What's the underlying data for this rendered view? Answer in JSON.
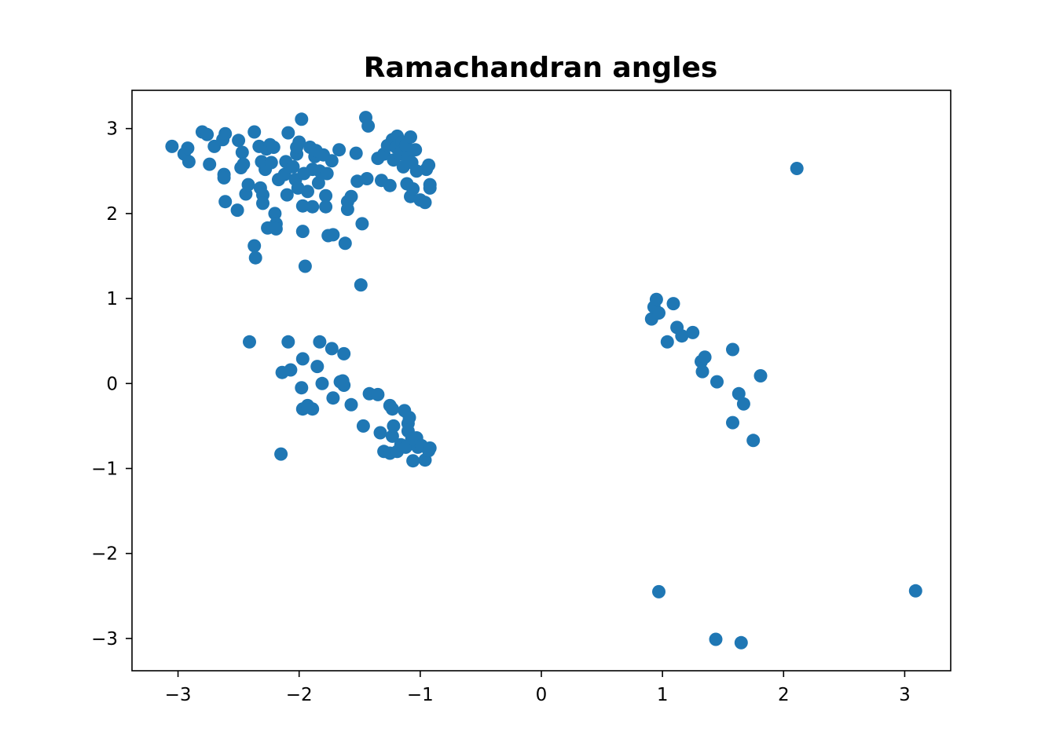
{
  "chart_data": {
    "type": "scatter",
    "title": "Ramachandran angles",
    "xlabel": "",
    "ylabel": "",
    "xlim": [
      -3.38,
      3.38
    ],
    "ylim": [
      -3.38,
      3.45
    ],
    "xticks": [
      -3,
      -2,
      -1,
      0,
      1,
      2,
      3
    ],
    "yticks": [
      -3,
      -2,
      -1,
      0,
      1,
      2,
      3
    ],
    "xtick_labels": [
      "−3",
      "−2",
      "−1",
      "0",
      "1",
      "2",
      "3"
    ],
    "ytick_labels": [
      "−3",
      "−2",
      "−1",
      "0",
      "1",
      "2",
      "3"
    ],
    "grid": false,
    "marker_color": "#1f77b4",
    "series": [
      {
        "points": [
          [
            -3.05,
            2.79
          ],
          [
            -2.95,
            2.7
          ],
          [
            -2.92,
            2.77
          ],
          [
            -2.91,
            2.61
          ],
          [
            -2.8,
            2.96
          ],
          [
            -2.76,
            2.93
          ],
          [
            -2.74,
            2.58
          ],
          [
            -2.7,
            2.79
          ],
          [
            -2.63,
            2.87
          ],
          [
            -2.61,
            2.94
          ],
          [
            -2.62,
            2.46
          ],
          [
            -2.62,
            2.42
          ],
          [
            -2.61,
            2.14
          ],
          [
            -2.51,
            2.04
          ],
          [
            -2.5,
            2.86
          ],
          [
            -2.48,
            2.54
          ],
          [
            -2.47,
            2.72
          ],
          [
            -2.46,
            2.58
          ],
          [
            -2.44,
            2.23
          ],
          [
            -2.42,
            2.34
          ],
          [
            -2.37,
            2.96
          ],
          [
            -2.37,
            1.62
          ],
          [
            -2.36,
            1.48
          ],
          [
            -2.33,
            2.79
          ],
          [
            -2.31,
            2.61
          ],
          [
            -2.32,
            2.3
          ],
          [
            -2.3,
            2.22
          ],
          [
            -2.3,
            2.12
          ],
          [
            -2.28,
            2.52
          ],
          [
            -2.27,
            2.76
          ],
          [
            -2.26,
            1.83
          ],
          [
            -2.24,
            2.81
          ],
          [
            -2.23,
            2.6
          ],
          [
            -2.21,
            2.78
          ],
          [
            -2.2,
            2.0
          ],
          [
            -2.19,
            1.88
          ],
          [
            -2.19,
            1.82
          ],
          [
            -2.17,
            2.4
          ],
          [
            -2.12,
            2.46
          ],
          [
            -2.11,
            2.61
          ],
          [
            -2.09,
            2.95
          ],
          [
            -2.1,
            2.22
          ],
          [
            -2.05,
            2.55
          ],
          [
            -2.03,
            2.4
          ],
          [
            -2.02,
            2.7
          ],
          [
            -2.01,
            2.3
          ],
          [
            -2.02,
            2.78
          ],
          [
            -2.0,
            2.84
          ],
          [
            -1.98,
            3.11
          ],
          [
            -1.97,
            1.79
          ],
          [
            -1.96,
            2.47
          ],
          [
            -1.97,
            2.09
          ],
          [
            -1.95,
            1.38
          ],
          [
            -1.93,
            2.26
          ],
          [
            -1.91,
            2.78
          ],
          [
            -1.89,
            2.52
          ],
          [
            -1.89,
            2.08
          ],
          [
            -1.87,
            2.67
          ],
          [
            -1.86,
            2.74
          ],
          [
            -1.84,
            2.36
          ],
          [
            -1.83,
            2.5
          ],
          [
            -1.8,
            2.69
          ],
          [
            -1.77,
            2.47
          ],
          [
            -1.78,
            2.21
          ],
          [
            -1.78,
            2.08
          ],
          [
            -1.76,
            1.74
          ],
          [
            -1.73,
            2.62
          ],
          [
            -1.72,
            1.75
          ],
          [
            -1.67,
            2.75
          ],
          [
            -1.62,
            1.65
          ],
          [
            -1.6,
            2.14
          ],
          [
            -1.6,
            2.05
          ],
          [
            -1.57,
            2.2
          ],
          [
            -1.53,
            2.71
          ],
          [
            -1.52,
            2.38
          ],
          [
            -1.49,
            1.16
          ],
          [
            -1.48,
            1.88
          ],
          [
            -1.45,
            3.13
          ],
          [
            -1.44,
            2.41
          ],
          [
            -1.43,
            3.03
          ],
          [
            -1.35,
            2.65
          ],
          [
            -1.32,
            2.39
          ],
          [
            -1.3,
            2.7
          ],
          [
            -1.27,
            2.8
          ],
          [
            -1.25,
            2.33
          ],
          [
            -1.23,
            2.87
          ],
          [
            -1.22,
            2.63
          ],
          [
            -1.2,
            2.78
          ],
          [
            -1.19,
            2.91
          ],
          [
            -1.17,
            2.7
          ],
          [
            -1.15,
            2.84
          ],
          [
            -1.14,
            2.55
          ],
          [
            -1.12,
            2.8
          ],
          [
            -1.11,
            2.35
          ],
          [
            -1.1,
            2.66
          ],
          [
            -1.08,
            2.2
          ],
          [
            -1.08,
            2.9
          ],
          [
            -1.07,
            2.6
          ],
          [
            -1.06,
            2.29
          ],
          [
            -1.04,
            2.75
          ],
          [
            -1.03,
            2.5
          ],
          [
            -1.0,
            2.16
          ],
          [
            -0.96,
            2.13
          ],
          [
            -0.95,
            2.52
          ],
          [
            -0.93,
            2.57
          ],
          [
            -0.92,
            2.34
          ],
          [
            -0.92,
            2.3
          ],
          [
            -2.41,
            0.49
          ],
          [
            -2.09,
            0.49
          ],
          [
            -1.83,
            0.49
          ],
          [
            -1.73,
            0.41
          ],
          [
            -1.63,
            0.35
          ],
          [
            -2.14,
            0.13
          ],
          [
            -2.07,
            0.16
          ],
          [
            -1.97,
            0.29
          ],
          [
            -1.85,
            0.2
          ],
          [
            -1.98,
            -0.05
          ],
          [
            -1.81,
            0.0
          ],
          [
            -1.66,
            0.02
          ],
          [
            -1.64,
            0.03
          ],
          [
            -1.63,
            -0.02
          ],
          [
            -1.97,
            -0.3
          ],
          [
            -1.93,
            -0.26
          ],
          [
            -1.89,
            -0.3
          ],
          [
            -1.72,
            -0.17
          ],
          [
            -1.57,
            -0.25
          ],
          [
            -1.47,
            -0.5
          ],
          [
            -1.42,
            -0.12
          ],
          [
            -1.35,
            -0.13
          ],
          [
            -1.33,
            -0.58
          ],
          [
            -1.3,
            -0.8
          ],
          [
            -1.25,
            -0.82
          ],
          [
            -1.25,
            -0.26
          ],
          [
            -1.23,
            -0.3
          ],
          [
            -1.23,
            -0.62
          ],
          [
            -1.22,
            -0.5
          ],
          [
            -1.19,
            -0.8
          ],
          [
            -1.16,
            -0.72
          ],
          [
            -1.13,
            -0.32
          ],
          [
            -1.12,
            -0.75
          ],
          [
            -1.1,
            -0.56
          ],
          [
            -1.1,
            -0.47
          ],
          [
            -1.09,
            -0.4
          ],
          [
            -1.07,
            -0.65
          ],
          [
            -1.06,
            -0.91
          ],
          [
            -1.03,
            -0.64
          ],
          [
            -1.02,
            -0.75
          ],
          [
            -0.99,
            -0.73
          ],
          [
            -0.96,
            -0.9
          ],
          [
            -0.93,
            -0.79
          ],
          [
            -0.92,
            -0.76
          ],
          [
            -2.15,
            -0.83
          ],
          [
            0.91,
            0.76
          ],
          [
            0.93,
            0.9
          ],
          [
            0.95,
            0.99
          ],
          [
            0.97,
            0.83
          ],
          [
            1.04,
            0.49
          ],
          [
            1.09,
            0.94
          ],
          [
            1.12,
            0.66
          ],
          [
            1.16,
            0.56
          ],
          [
            1.25,
            0.6
          ],
          [
            1.32,
            0.26
          ],
          [
            1.33,
            0.14
          ],
          [
            1.35,
            0.31
          ],
          [
            1.45,
            0.02
          ],
          [
            1.58,
            0.4
          ],
          [
            1.58,
            -0.46
          ],
          [
            1.63,
            -0.12
          ],
          [
            1.67,
            -0.24
          ],
          [
            1.75,
            -0.67
          ],
          [
            1.81,
            0.09
          ],
          [
            2.11,
            2.53
          ],
          [
            0.97,
            -2.45
          ],
          [
            1.44,
            -3.01
          ],
          [
            1.65,
            -3.05
          ],
          [
            3.09,
            -2.44
          ]
        ]
      }
    ]
  }
}
